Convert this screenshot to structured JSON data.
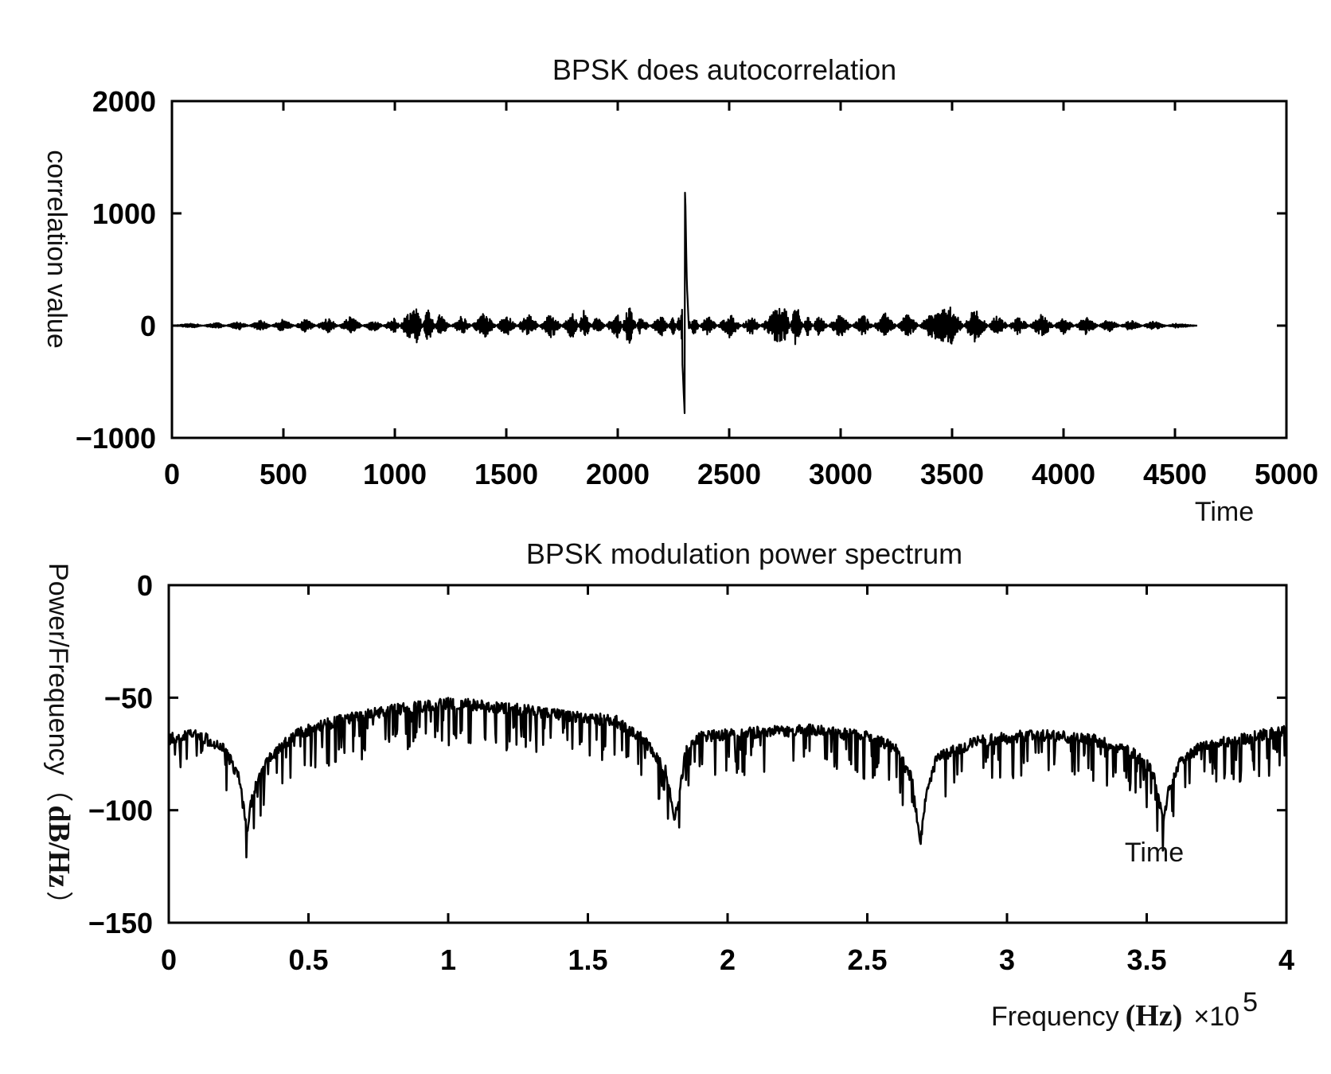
{
  "chart_data": [
    {
      "type": "line",
      "title": "BPSK does autocorrelation",
      "xlabel": "Time",
      "ylabel": "correlation value",
      "xlim": [
        0,
        5000
      ],
      "ylim": [
        -1000,
        2000
      ],
      "x_ticks": [
        "0",
        "500",
        "1000",
        "1500",
        "2000",
        "2500",
        "3000",
        "3500",
        "4000",
        "4500",
        "5000"
      ],
      "y_ticks": [
        "2000",
        "1000",
        "0",
        "−1000"
      ],
      "grid": false,
      "series": [
        {
          "color": "#000000",
          "x": [
            0,
            100,
            200,
            300,
            400,
            500,
            600,
            700,
            800,
            900,
            1000,
            1050,
            1100,
            1150,
            1200,
            1300,
            1400,
            1500,
            1600,
            1700,
            1800,
            1850,
            1900,
            2000,
            2050,
            2100,
            2200,
            2250,
            2280,
            2300,
            2302,
            2310,
            2320,
            2340,
            2400,
            2500,
            2600,
            2700,
            2750,
            2800,
            2850,
            2900,
            3000,
            3100,
            3200,
            3300,
            3400,
            3500,
            3600,
            3700,
            3800,
            3900,
            4000,
            4100,
            4200,
            4300,
            4400,
            4500,
            4600
          ],
          "y": [
            0,
            20,
            -30,
            40,
            -50,
            60,
            -60,
            70,
            -80,
            60,
            -70,
            90,
            160,
            -170,
            100,
            -90,
            120,
            -100,
            110,
            -120,
            130,
            -150,
            90,
            -110,
            180,
            -80,
            100,
            -90,
            120,
            -780,
            1270,
            380,
            -60,
            90,
            -100,
            110,
            -90,
            130,
            180,
            -200,
            100,
            -90,
            110,
            -100,
            120,
            -110,
            100,
            170,
            -160,
            100,
            -90,
            110,
            -80,
            80,
            -60,
            50,
            -40,
            20,
            0
          ]
        }
      ]
    },
    {
      "type": "line",
      "title": "BPSK modulation power spectrum",
      "xlabel": "Frequency",
      "xunit": "(Hz)",
      "x_multiplier": "×10",
      "x_multiplier_exp": "5",
      "ylabel": "Power/Frequency（dB/Hz）",
      "ylabel_text": "Power/Frequency（",
      "ylabel_unit": "dB/Hz",
      "ylabel_close": "）",
      "annotation": "Time",
      "xlim": [
        0,
        4
      ],
      "ylim": [
        -150,
        0
      ],
      "x_ticks": [
        "0",
        "0.5",
        "1",
        "1.5",
        "2",
        "2.5",
        "3",
        "3.5",
        "4"
      ],
      "y_ticks": [
        "0",
        "−50",
        "−100",
        "−150"
      ],
      "grid": false,
      "series": [
        {
          "color": "#000000",
          "x": [
            0,
            0.1,
            0.2,
            0.25,
            0.28,
            0.3,
            0.35,
            0.45,
            0.6,
            0.8,
            1.0,
            1.2,
            1.4,
            1.6,
            1.7,
            1.78,
            1.81,
            1.83,
            1.85,
            1.9,
            2.1,
            2.3,
            2.5,
            2.6,
            2.66,
            2.69,
            2.71,
            2.75,
            2.9,
            3.1,
            3.3,
            3.45,
            3.52,
            3.56,
            3.58,
            3.62,
            3.7,
            3.85,
            4.0
          ],
          "y": [
            -68,
            -66,
            -72,
            -85,
            -108,
            -92,
            -78,
            -66,
            -60,
            -55,
            -52,
            -54,
            -57,
            -60,
            -68,
            -82,
            -104,
            -90,
            -74,
            -67,
            -65,
            -64,
            -67,
            -72,
            -86,
            -114,
            -92,
            -76,
            -69,
            -66,
            -68,
            -74,
            -82,
            -105,
            -90,
            -78,
            -71,
            -68,
            -64
          ]
        }
      ]
    }
  ]
}
